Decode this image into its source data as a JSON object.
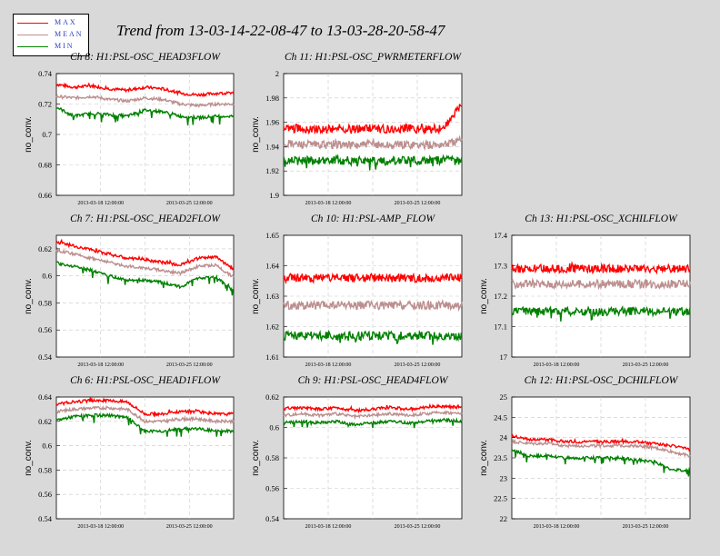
{
  "title": "Trend from 13-03-14-22-08-47 to 13-03-28-20-58-47",
  "legend": [
    {
      "label": "MAX",
      "color": "#ff0000"
    },
    {
      "label": "MEAN",
      "color": "#bc8f8f"
    },
    {
      "label": "MIN",
      "color": "#008000"
    }
  ],
  "chart_data": [
    {
      "type": "line",
      "title": "Ch 8: H1:PSL-OSC_HEAD3FLOW",
      "ylabel": "no_conv.",
      "ylim": [
        0.66,
        0.74
      ],
      "yticks": [
        "0.74",
        "0.72",
        "0.7",
        "0.68",
        "0.66"
      ],
      "yticks_values": [
        0.74,
        0.72,
        0.7,
        0.68,
        0.66
      ],
      "xticks": [
        "2013-03-18 12:00:00",
        "2013-03-25 12:00:00"
      ],
      "series": [
        {
          "name": "MAX",
          "x": [
            0,
            0.1,
            0.2,
            0.3,
            0.4,
            0.5,
            0.6,
            0.7,
            0.8,
            0.9,
            1
          ],
          "values": [
            0.733,
            0.731,
            0.732,
            0.73,
            0.729,
            0.731,
            0.73,
            0.727,
            0.726,
            0.727,
            0.727
          ]
        },
        {
          "name": "MEAN",
          "x": [
            0,
            0.1,
            0.2,
            0.3,
            0.4,
            0.5,
            0.6,
            0.7,
            0.8,
            0.9,
            1
          ],
          "values": [
            0.725,
            0.724,
            0.725,
            0.723,
            0.722,
            0.724,
            0.723,
            0.72,
            0.719,
            0.72,
            0.72
          ]
        },
        {
          "name": "MIN",
          "x": [
            0,
            0.1,
            0.2,
            0.3,
            0.4,
            0.5,
            0.6,
            0.7,
            0.8,
            0.9,
            1
          ],
          "values": [
            0.718,
            0.712,
            0.714,
            0.713,
            0.712,
            0.716,
            0.715,
            0.712,
            0.711,
            0.712,
            0.712
          ]
        }
      ]
    },
    {
      "type": "line",
      "title": "Ch 11: H1:PSL-OSC_PWRMETERFLOW",
      "ylabel": "no_conv.",
      "ylim": [
        1.9,
        2.0
      ],
      "yticks": [
        "2",
        "1.98",
        "1.96",
        "1.94",
        "1.92",
        "1.9"
      ],
      "yticks_values": [
        2.0,
        1.98,
        1.96,
        1.94,
        1.92,
        1.9
      ],
      "xticks": [
        "2013-03-18 12:00:00",
        "2013-03-25 12:00:00"
      ],
      "series": [
        {
          "name": "MAX",
          "x": [
            0,
            0.1,
            0.2,
            0.3,
            0.4,
            0.5,
            0.6,
            0.7,
            0.8,
            0.9,
            1
          ],
          "values": [
            1.955,
            1.955,
            1.954,
            1.955,
            1.954,
            1.955,
            1.954,
            1.955,
            1.954,
            1.955,
            1.975
          ]
        },
        {
          "name": "MEAN",
          "x": [
            0,
            0.1,
            0.2,
            0.3,
            0.4,
            0.5,
            0.6,
            0.7,
            0.8,
            0.9,
            1
          ],
          "values": [
            1.942,
            1.942,
            1.941,
            1.942,
            1.941,
            1.942,
            1.941,
            1.942,
            1.941,
            1.942,
            1.945
          ]
        },
        {
          "name": "MIN",
          "x": [
            0,
            0.1,
            0.2,
            0.3,
            0.4,
            0.5,
            0.6,
            0.7,
            0.8,
            0.9,
            1
          ],
          "values": [
            1.929,
            1.929,
            1.928,
            1.929,
            1.928,
            1.929,
            1.928,
            1.929,
            1.928,
            1.929,
            1.928
          ]
        }
      ]
    },
    {
      "type": "line",
      "title": "Ch 7: H1:PSL-OSC_HEAD2FLOW",
      "ylabel": "no_conv.",
      "ylim": [
        0.54,
        0.63
      ],
      "yticks": [
        "0.62",
        "0.6",
        "0.58",
        "0.56",
        "0.54"
      ],
      "yticks_values": [
        0.62,
        0.6,
        0.58,
        0.56,
        0.54
      ],
      "xticks": [
        "2013-03-18 12:00:00",
        "2013-03-25 12:00:00"
      ],
      "series": [
        {
          "name": "MAX",
          "x": [
            0,
            0.1,
            0.2,
            0.3,
            0.4,
            0.5,
            0.6,
            0.7,
            0.8,
            0.9,
            1
          ],
          "values": [
            0.625,
            0.622,
            0.619,
            0.616,
            0.613,
            0.612,
            0.61,
            0.608,
            0.613,
            0.614,
            0.605
          ]
        },
        {
          "name": "MEAN",
          "x": [
            0,
            0.1,
            0.2,
            0.3,
            0.4,
            0.5,
            0.6,
            0.7,
            0.8,
            0.9,
            1
          ],
          "values": [
            0.619,
            0.616,
            0.613,
            0.61,
            0.607,
            0.606,
            0.604,
            0.602,
            0.607,
            0.608,
            0.599
          ]
        },
        {
          "name": "MIN",
          "x": [
            0,
            0.1,
            0.2,
            0.3,
            0.4,
            0.5,
            0.6,
            0.7,
            0.8,
            0.9,
            1
          ],
          "values": [
            0.61,
            0.607,
            0.604,
            0.6,
            0.597,
            0.597,
            0.595,
            0.592,
            0.598,
            0.599,
            0.59
          ]
        }
      ]
    },
    {
      "type": "line",
      "title": "Ch 10: H1:PSL-AMP_FLOW",
      "ylabel": "no_conv.",
      "ylim": [
        1.61,
        1.65
      ],
      "yticks": [
        "1.65",
        "1.64",
        "1.63",
        "1.62",
        "1.61"
      ],
      "yticks_values": [
        1.65,
        1.64,
        1.63,
        1.62,
        1.61
      ],
      "xticks": [
        "2013-03-18 12:00:00",
        "2013-03-25 12:00:00"
      ],
      "series": [
        {
          "name": "MAX",
          "x": [
            0,
            0.1,
            0.2,
            0.3,
            0.4,
            0.5,
            0.6,
            0.7,
            0.8,
            0.9,
            1
          ],
          "values": [
            1.636,
            1.636,
            1.636,
            1.636,
            1.636,
            1.636,
            1.636,
            1.636,
            1.636,
            1.636,
            1.636
          ]
        },
        {
          "name": "MEAN",
          "x": [
            0,
            0.1,
            0.2,
            0.3,
            0.4,
            0.5,
            0.6,
            0.7,
            0.8,
            0.9,
            1
          ],
          "values": [
            1.627,
            1.627,
            1.627,
            1.627,
            1.627,
            1.627,
            1.627,
            1.627,
            1.627,
            1.627,
            1.627
          ]
        },
        {
          "name": "MIN",
          "x": [
            0,
            0.1,
            0.2,
            0.3,
            0.4,
            0.5,
            0.6,
            0.7,
            0.8,
            0.9,
            1
          ],
          "values": [
            1.617,
            1.617,
            1.617,
            1.617,
            1.617,
            1.617,
            1.617,
            1.617,
            1.617,
            1.617,
            1.617
          ]
        }
      ]
    },
    {
      "type": "line",
      "title": "Ch 13: H1:PSL-OSC_XCHILFLOW",
      "ylabel": "no_conv.",
      "ylim": [
        17.0,
        17.4
      ],
      "yticks": [
        "17.4",
        "17.3",
        "17.2",
        "17.1",
        "17"
      ],
      "yticks_values": [
        17.4,
        17.3,
        17.2,
        17.1,
        17.0
      ],
      "xticks": [
        "2013-03-18 12:00:00",
        "2013-03-25 12:00:00"
      ],
      "series": [
        {
          "name": "MAX",
          "x": [
            0,
            0.1,
            0.2,
            0.3,
            0.4,
            0.5,
            0.6,
            0.7,
            0.8,
            0.9,
            1
          ],
          "values": [
            17.29,
            17.29,
            17.29,
            17.29,
            17.29,
            17.29,
            17.29,
            17.29,
            17.29,
            17.29,
            17.29
          ]
        },
        {
          "name": "MEAN",
          "x": [
            0,
            0.1,
            0.2,
            0.3,
            0.4,
            0.5,
            0.6,
            0.7,
            0.8,
            0.9,
            1
          ],
          "values": [
            17.24,
            17.24,
            17.24,
            17.24,
            17.24,
            17.24,
            17.24,
            17.24,
            17.24,
            17.24,
            17.24
          ]
        },
        {
          "name": "MIN",
          "x": [
            0,
            0.1,
            0.2,
            0.3,
            0.4,
            0.5,
            0.6,
            0.7,
            0.8,
            0.9,
            1
          ],
          "values": [
            17.15,
            17.15,
            17.15,
            17.15,
            17.15,
            17.15,
            17.15,
            17.15,
            17.15,
            17.15,
            17.15
          ]
        }
      ]
    },
    {
      "type": "line",
      "title": "Ch 6: H1:PSL-OSC_HEAD1FLOW",
      "ylabel": "no_conv.",
      "ylim": [
        0.54,
        0.64
      ],
      "yticks": [
        "0.64",
        "0.62",
        "0.6",
        "0.58",
        "0.56",
        "0.54"
      ],
      "yticks_values": [
        0.64,
        0.62,
        0.6,
        0.58,
        0.56,
        0.54
      ],
      "xticks": [
        "2013-03-18 12:00:00",
        "2013-03-25 12:00:00"
      ],
      "series": [
        {
          "name": "MAX",
          "x": [
            0,
            0.1,
            0.2,
            0.3,
            0.4,
            0.5,
            0.6,
            0.7,
            0.8,
            0.9,
            1
          ],
          "values": [
            0.634,
            0.636,
            0.637,
            0.637,
            0.636,
            0.626,
            0.626,
            0.628,
            0.628,
            0.626,
            0.626
          ]
        },
        {
          "name": "MEAN",
          "x": [
            0,
            0.1,
            0.2,
            0.3,
            0.4,
            0.5,
            0.6,
            0.7,
            0.8,
            0.9,
            1
          ],
          "values": [
            0.628,
            0.63,
            0.631,
            0.631,
            0.63,
            0.62,
            0.62,
            0.622,
            0.622,
            0.62,
            0.62
          ]
        },
        {
          "name": "MIN",
          "x": [
            0,
            0.1,
            0.2,
            0.3,
            0.4,
            0.5,
            0.6,
            0.7,
            0.8,
            0.9,
            1
          ],
          "values": [
            0.621,
            0.624,
            0.625,
            0.625,
            0.623,
            0.612,
            0.612,
            0.614,
            0.614,
            0.612,
            0.612
          ]
        }
      ]
    },
    {
      "type": "line",
      "title": "Ch 9: H1:PSL-OSC_HEAD4FLOW",
      "ylabel": "no_conv.",
      "ylim": [
        0.54,
        0.62
      ],
      "yticks": [
        "0.62",
        "0.6",
        "0.58",
        "0.56",
        "0.54"
      ],
      "yticks_values": [
        0.62,
        0.6,
        0.58,
        0.56,
        0.54
      ],
      "xticks": [
        "2013-03-18 12:00:00",
        "2013-03-25 12:00:00"
      ],
      "series": [
        {
          "name": "MAX",
          "x": [
            0,
            0.1,
            0.2,
            0.3,
            0.4,
            0.5,
            0.6,
            0.7,
            0.8,
            0.9,
            1
          ],
          "values": [
            0.612,
            0.613,
            0.612,
            0.613,
            0.611,
            0.612,
            0.613,
            0.612,
            0.613,
            0.614,
            0.613
          ]
        },
        {
          "name": "MEAN",
          "x": [
            0,
            0.1,
            0.2,
            0.3,
            0.4,
            0.5,
            0.6,
            0.7,
            0.8,
            0.9,
            1
          ],
          "values": [
            0.608,
            0.609,
            0.608,
            0.609,
            0.607,
            0.608,
            0.609,
            0.608,
            0.609,
            0.61,
            0.609
          ]
        },
        {
          "name": "MIN",
          "x": [
            0,
            0.1,
            0.2,
            0.3,
            0.4,
            0.5,
            0.6,
            0.7,
            0.8,
            0.9,
            1
          ],
          "values": [
            0.603,
            0.604,
            0.603,
            0.604,
            0.602,
            0.603,
            0.604,
            0.603,
            0.604,
            0.605,
            0.604
          ]
        }
      ]
    },
    {
      "type": "line",
      "title": "Ch 12: H1:PSL-OSC_DCHILFLOW",
      "ylabel": "no_conv.",
      "ylim": [
        22.0,
        25.0
      ],
      "yticks": [
        "25",
        "24.5",
        "24",
        "23.5",
        "23",
        "22.5",
        "22"
      ],
      "yticks_values": [
        25,
        24.5,
        24,
        23.5,
        23,
        22.5,
        22
      ],
      "xticks": [
        "2013-03-18 12:00:00",
        "2013-03-25 12:00:00"
      ],
      "series": [
        {
          "name": "MAX",
          "x": [
            0,
            0.1,
            0.2,
            0.3,
            0.4,
            0.5,
            0.6,
            0.7,
            0.8,
            0.9,
            1
          ],
          "values": [
            24.05,
            23.95,
            23.95,
            23.9,
            23.9,
            23.9,
            23.9,
            23.9,
            23.85,
            23.8,
            23.7
          ]
        },
        {
          "name": "MEAN",
          "x": [
            0,
            0.1,
            0.2,
            0.3,
            0.4,
            0.5,
            0.6,
            0.7,
            0.8,
            0.9,
            1
          ],
          "values": [
            23.9,
            23.85,
            23.85,
            23.8,
            23.8,
            23.8,
            23.8,
            23.8,
            23.75,
            23.65,
            23.55
          ]
        },
        {
          "name": "MIN",
          "x": [
            0,
            0.1,
            0.2,
            0.3,
            0.4,
            0.5,
            0.6,
            0.7,
            0.8,
            0.9,
            1
          ],
          "values": [
            23.7,
            23.55,
            23.55,
            23.5,
            23.5,
            23.5,
            23.5,
            23.45,
            23.4,
            23.2,
            23.2
          ]
        }
      ]
    }
  ]
}
